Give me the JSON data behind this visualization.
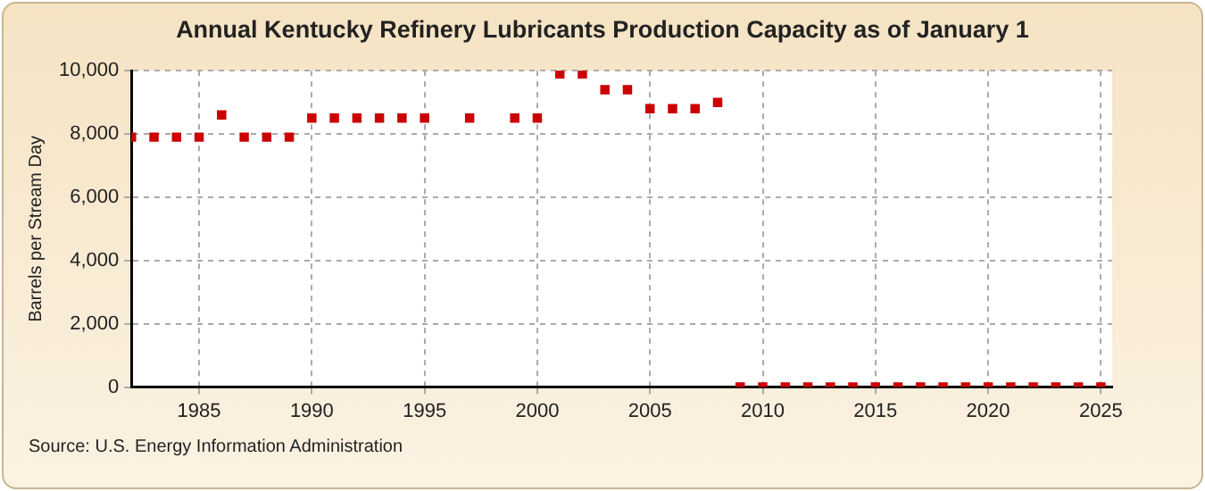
{
  "chart_data": {
    "type": "scatter",
    "title": "Annual Kentucky Refinery Lubricants Production Capacity as of January 1",
    "ylabel": "Barrels per Stream Day",
    "x": [
      1982,
      1983,
      1984,
      1985,
      1986,
      1987,
      1988,
      1989,
      1990,
      1991,
      1992,
      1993,
      1994,
      1995,
      1997,
      1999,
      2000,
      2001,
      2002,
      2003,
      2004,
      2005,
      2006,
      2007,
      2008,
      2009,
      2010,
      2011,
      2012,
      2013,
      2014,
      2015,
      2016,
      2017,
      2018,
      2019,
      2020,
      2021,
      2022,
      2023,
      2024,
      2025
    ],
    "series": [
      {
        "color": "#cc0000",
        "values": [
          7900,
          7900,
          7900,
          7900,
          8600,
          7900,
          7900,
          7900,
          8500,
          8500,
          8500,
          8500,
          8500,
          8500,
          8500,
          8500,
          8500,
          9900,
          9900,
          9400,
          9400,
          8800,
          8800,
          8800,
          9000,
          0,
          0,
          0,
          0,
          0,
          0,
          0,
          0,
          0,
          0,
          0,
          0,
          0,
          0,
          0,
          0,
          0
        ]
      }
    ],
    "xlim": [
      1982,
      2025.5
    ],
    "xticks": [
      {
        "value": 1985,
        "label": "1985"
      },
      {
        "value": 1990,
        "label": "1990"
      },
      {
        "value": 1995,
        "label": "1995"
      },
      {
        "value": 2000,
        "label": "2000"
      },
      {
        "value": 2005,
        "label": "2005"
      },
      {
        "value": 2010,
        "label": "2010"
      },
      {
        "value": 2015,
        "label": "2015"
      },
      {
        "value": 2020,
        "label": "2020"
      },
      {
        "value": 2025,
        "label": "2025"
      }
    ],
    "ylim": [
      0,
      10000
    ],
    "yticks": [
      0,
      {
        "value": 2000,
        "label": "2,000"
      },
      {
        "value": 4000,
        "label": "4,000"
      },
      {
        "value": 6000,
        "label": "6,000"
      },
      {
        "value": 8000,
        "label": "8,000"
      },
      {
        "value": 10000,
        "label": "10,000"
      }
    ],
    "grid": true,
    "marker": "square",
    "legend": false,
    "annotations": [
      "Source: U.S. Energy Information Administration"
    ]
  }
}
